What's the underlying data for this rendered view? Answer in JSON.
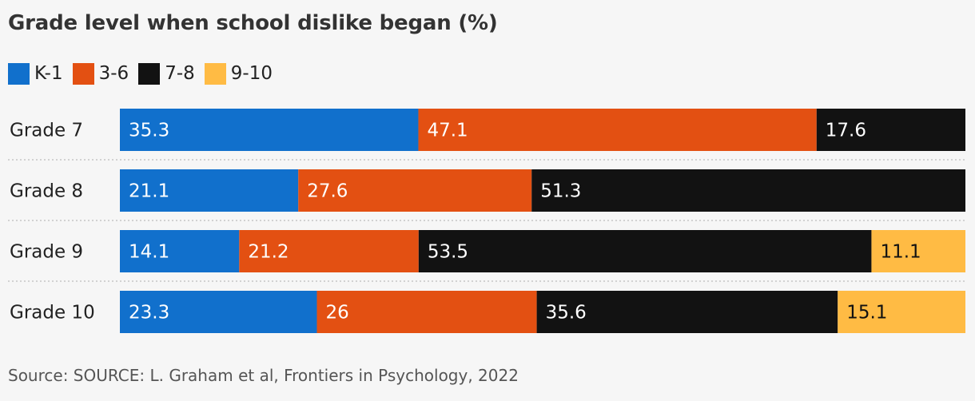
{
  "chart_data": {
    "type": "bar",
    "orientation": "horizontal",
    "stacked": true,
    "title": "Grade level when school dislike began (%)",
    "categories": [
      "Grade 7",
      "Grade 8",
      "Grade 9",
      "Grade 10"
    ],
    "series": [
      {
        "name": "K-1",
        "color": "#1170cc",
        "label_color": "#ffffff",
        "values": [
          35.3,
          21.1,
          14.1,
          23.3
        ]
      },
      {
        "name": "3-6",
        "color": "#e35012",
        "label_color": "#ffffff",
        "values": [
          47.1,
          27.6,
          21.2,
          26
        ]
      },
      {
        "name": "7-8",
        "color": "#121212",
        "label_color": "#ffffff",
        "values": [
          17.6,
          51.3,
          53.5,
          35.6
        ]
      },
      {
        "name": "9-10",
        "color": "#ffbb44",
        "label_color": "#111111",
        "values": [
          null,
          null,
          11.1,
          15.1
        ]
      }
    ],
    "xlim": [
      0,
      100
    ],
    "legend_position": "top-left",
    "grid": false
  },
  "source": "Source: SOURCE: L. Graham et al, Frontiers in Psychology, 2022"
}
